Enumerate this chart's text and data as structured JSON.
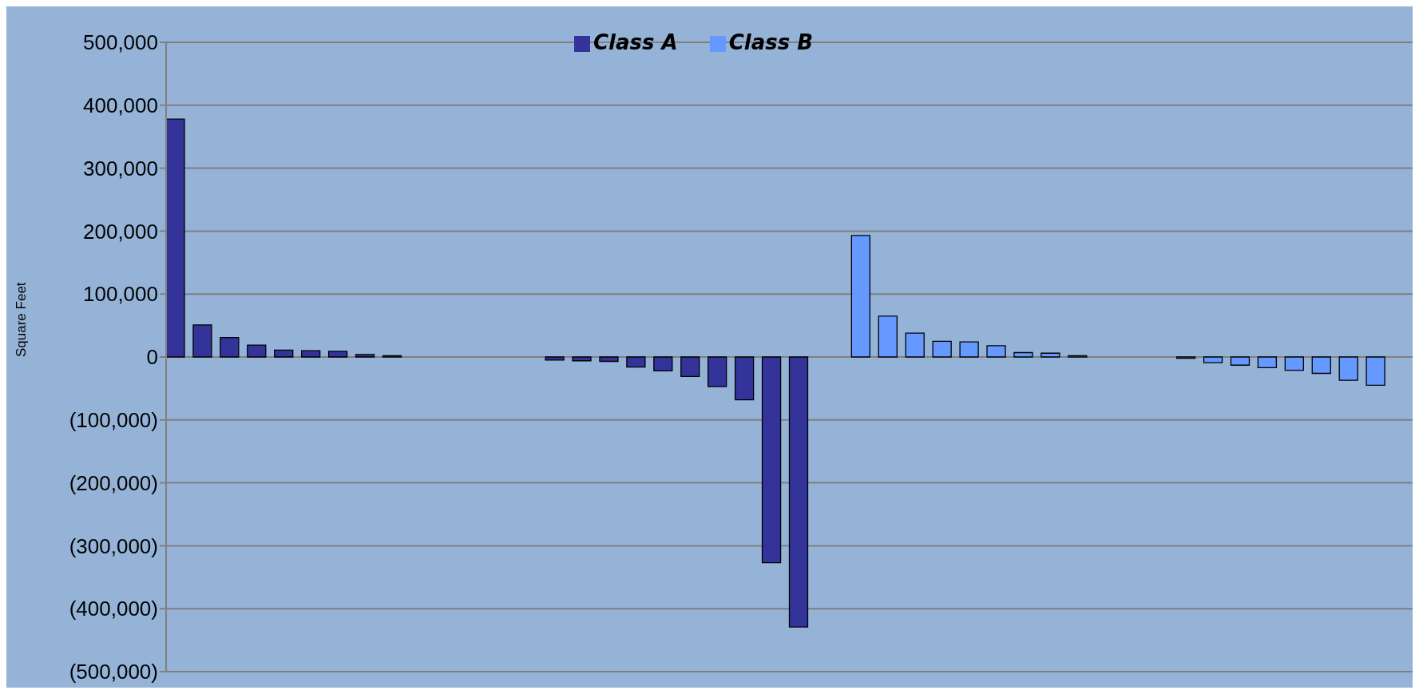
{
  "chart_data": {
    "type": "bar",
    "ylabel": "Square Feet",
    "categories": [
      null,
      null,
      null,
      null,
      null,
      null,
      null,
      null,
      null,
      null,
      null,
      null,
      null,
      null,
      null,
      null,
      null,
      null,
      null,
      null,
      null,
      null,
      null,
      null,
      null,
      null,
      null,
      null,
      null,
      null,
      null,
      null,
      null,
      null,
      null,
      null,
      null,
      null,
      null,
      null,
      null,
      null,
      null,
      null,
      null,
      null
    ],
    "series": [
      {
        "name": "Class A",
        "color": "#333399",
        "values": [
          378000,
          51000,
          31000,
          19000,
          11000,
          10000,
          9000,
          4000,
          2000,
          null,
          null,
          null,
          null,
          null,
          -5000,
          -6000,
          -7000,
          -16000,
          -22000,
          -31000,
          -47000,
          -68000,
          -327000,
          -429000,
          null,
          null,
          null,
          null,
          null,
          null,
          null,
          null,
          null,
          null,
          null,
          null,
          null,
          null,
          null,
          null,
          null,
          null,
          null,
          null,
          null,
          null
        ]
      },
      {
        "name": "Class B",
        "color": "#6699ff",
        "values": [
          null,
          null,
          null,
          null,
          null,
          null,
          null,
          null,
          null,
          null,
          null,
          null,
          null,
          null,
          null,
          null,
          null,
          null,
          null,
          null,
          null,
          null,
          null,
          null,
          null,
          193000,
          65000,
          38000,
          25000,
          24000,
          18000,
          7000,
          6000,
          2000,
          null,
          null,
          null,
          -2000,
          -9000,
          -13000,
          -17000,
          -21000,
          -26000,
          -37000,
          -45000,
          null
        ]
      }
    ],
    "ylim": [
      -500000,
      500000
    ],
    "yticks": [
      {
        "value": -500000,
        "label": "(500,000)"
      },
      {
        "value": -400000,
        "label": "(400,000)"
      },
      {
        "value": -300000,
        "label": "(300,000)"
      },
      {
        "value": -200000,
        "label": "(200,000)"
      },
      {
        "value": -100000,
        "label": "(100,000)"
      },
      {
        "value": 0,
        "label": "0"
      },
      {
        "value": 100000,
        "label": "100,000"
      },
      {
        "value": 200000,
        "label": "200,000"
      },
      {
        "value": 300000,
        "label": "300,000"
      },
      {
        "value": 400000,
        "label": "400,000"
      },
      {
        "value": 500000,
        "label": "500,000"
      }
    ],
    "grid": "y",
    "legend": "top"
  }
}
